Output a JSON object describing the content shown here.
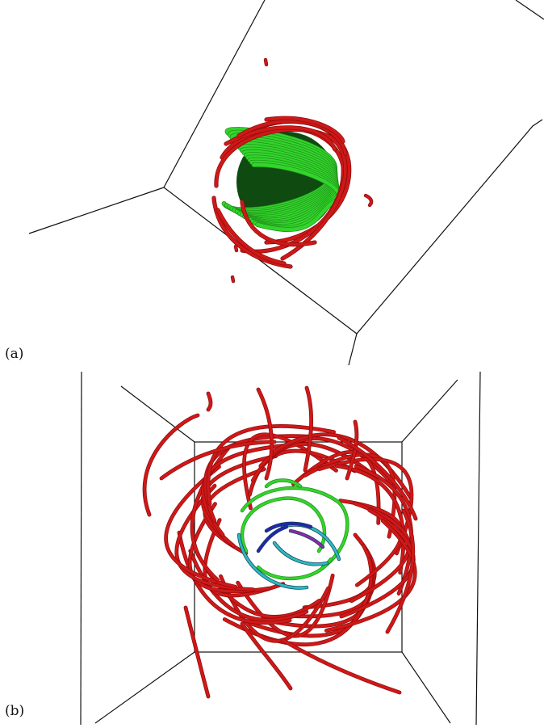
{
  "figure": {
    "panels": [
      {
        "label": "(a)"
      },
      {
        "label": "(b)"
      }
    ],
    "colors": {
      "frame": "#111111",
      "tube_red": "#d01818",
      "tube_dark_red": "#8a0c0c",
      "tube_green": "#33d42c",
      "tube_dark_green": "#1f8f1a",
      "tube_cyan": "#2fb8c0",
      "tube_blue": "#2525b0",
      "tube_purple": "#8a2aa6"
    }
  }
}
